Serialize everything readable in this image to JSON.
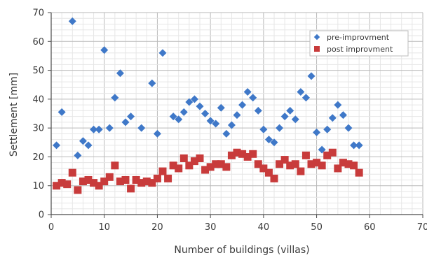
{
  "chart_data": {
    "type": "scatter",
    "xlabel": "Number of buildings (villas)",
    "ylabel": "Settlement [mm]",
    "xlim": [
      0,
      70
    ],
    "ylim": [
      0,
      70
    ],
    "xticks": [
      "0",
      "10",
      "20",
      "30",
      "40",
      "50",
      "60",
      "70"
    ],
    "yticks": [
      "0",
      "10",
      "20",
      "30",
      "40",
      "50",
      "60",
      "70"
    ],
    "grid": true,
    "legend_position": "top-right",
    "series": [
      {
        "name": "pre-improvment",
        "marker": "diamond",
        "color": "#3f78c8",
        "x": [
          1,
          2,
          4,
          5,
          6,
          7,
          8,
          9,
          10,
          11,
          12,
          13,
          14,
          15,
          17,
          19,
          20,
          21,
          23,
          24,
          25,
          26,
          27,
          28,
          29,
          30,
          31,
          32,
          33,
          34,
          35,
          36,
          37,
          38,
          39,
          40,
          41,
          42,
          43,
          44,
          45,
          46,
          47,
          48,
          49,
          50,
          51,
          52,
          53,
          54,
          55,
          56,
          57,
          58
        ],
        "y": [
          24,
          35.5,
          67,
          20.5,
          25.5,
          24,
          29.5,
          29.5,
          57,
          30,
          40.5,
          49,
          32,
          34,
          30,
          45.5,
          28,
          56,
          34,
          33,
          35.5,
          39,
          40,
          37.5,
          35,
          32.5,
          31.5,
          37,
          28,
          31,
          34.5,
          38,
          42.5,
          40.5,
          36,
          29.5,
          26,
          25,
          30,
          34,
          36,
          33,
          42.5,
          40.5,
          48,
          28.5,
          22.5,
          29.5,
          33.5,
          38,
          34.5,
          30,
          24,
          24
        ]
      },
      {
        "name": "post improvment",
        "marker": "square",
        "color": "#c83b3b",
        "x": [
          1,
          2,
          3,
          4,
          5,
          6,
          7,
          8,
          9,
          10,
          11,
          12,
          13,
          14,
          15,
          16,
          17,
          18,
          19,
          20,
          21,
          22,
          23,
          24,
          25,
          26,
          27,
          28,
          29,
          30,
          31,
          32,
          33,
          34,
          35,
          36,
          37,
          38,
          39,
          40,
          41,
          42,
          43,
          44,
          45,
          46,
          47,
          48,
          49,
          50,
          51,
          52,
          53,
          54,
          55,
          56,
          57,
          58
        ],
        "y": [
          10,
          11,
          10.5,
          14.5,
          8.5,
          11.5,
          12,
          11,
          10,
          11.5,
          13,
          17,
          11.5,
          12,
          9,
          12,
          11,
          11.5,
          11,
          12.5,
          15,
          12.5,
          17,
          16,
          19.5,
          17,
          18.5,
          19.5,
          15.5,
          16.5,
          17.5,
          17.5,
          16.5,
          20.5,
          21.5,
          21,
          20,
          21,
          17.5,
          16,
          14.5,
          12.5,
          17.5,
          19,
          17,
          17.5,
          15,
          20.5,
          17.5,
          18,
          17,
          20.5,
          21.5,
          16,
          18,
          17.5,
          17,
          14.5
        ]
      }
    ]
  }
}
